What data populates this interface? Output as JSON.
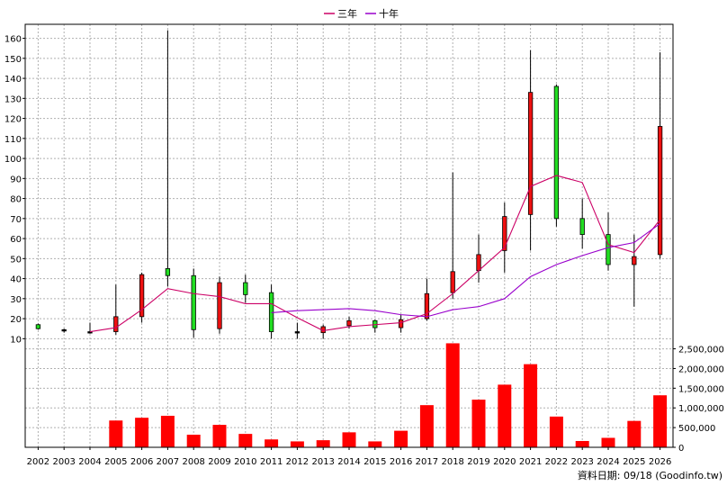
{
  "legend": [
    {
      "name": "三年",
      "color": "#cc0066"
    },
    {
      "name": "十年",
      "color": "#9900cc"
    }
  ],
  "footer_text": "資料日期: 09/18 (Goodinfo.tw)",
  "chart_data": {
    "type": "candlestick-with-volume",
    "x": [
      "2002",
      "2003",
      "2004",
      "2005",
      "2006",
      "2007",
      "2008",
      "2009",
      "2010",
      "2011",
      "2012",
      "2013",
      "2014",
      "2015",
      "2016",
      "2017",
      "2018",
      "2019",
      "2020",
      "2021",
      "2022",
      "2023",
      "2024",
      "2025",
      "2026"
    ],
    "price_axis": {
      "ylim": [
        7,
        167
      ],
      "ticks": [
        10,
        20,
        30,
        40,
        50,
        60,
        70,
        80,
        90,
        100,
        110,
        120,
        130,
        140,
        150,
        160
      ]
    },
    "volume_axis": {
      "ylim": [
        0,
        2650000
      ],
      "ticks": [
        0,
        500000,
        1000000,
        1500000,
        2000000,
        2500000
      ],
      "tick_labels": [
        "0",
        "500,000",
        "1,000,000",
        "1,500,000",
        "2,000,000",
        "2,500,000"
      ]
    },
    "candles": [
      {
        "year": "2002",
        "open": 15.0,
        "close": 17.0,
        "high": 17.5,
        "low": 14.5,
        "color": "green"
      },
      {
        "year": "2003",
        "open": 14.5,
        "close": 14.0,
        "high": 15.0,
        "low": 13.0,
        "color": "black"
      },
      {
        "year": "2004",
        "open": 13.5,
        "close": 13.5,
        "high": 18.0,
        "low": 12.5,
        "color": "black"
      },
      {
        "year": "2005",
        "open": 13.5,
        "close": 21.0,
        "high": 37.0,
        "low": 12.0,
        "color": "red"
      },
      {
        "year": "2006",
        "open": 21.0,
        "close": 42.0,
        "high": 43.0,
        "low": 18.0,
        "color": "red"
      },
      {
        "year": "2007",
        "open": 45.0,
        "close": 41.5,
        "high": 164.0,
        "low": 36.0,
        "color": "green"
      },
      {
        "year": "2008",
        "open": 41.5,
        "close": 14.5,
        "high": 45.0,
        "low": 10.5,
        "color": "green"
      },
      {
        "year": "2009",
        "open": 15.0,
        "close": 38.0,
        "high": 41.0,
        "low": 12.5,
        "color": "red"
      },
      {
        "year": "2010",
        "open": 38.0,
        "close": 32.0,
        "high": 42.0,
        "low": 28.0,
        "color": "green"
      },
      {
        "year": "2011",
        "open": 33.0,
        "close": 13.5,
        "high": 37.0,
        "low": 10.0,
        "color": "green"
      },
      {
        "year": "2012",
        "open": 13.5,
        "close": 13.5,
        "high": 18.0,
        "low": 10.0,
        "color": "black"
      },
      {
        "year": "2013",
        "open": 13.0,
        "close": 16.0,
        "high": 17.0,
        "low": 10.0,
        "color": "red"
      },
      {
        "year": "2014",
        "open": 16.5,
        "close": 19.0,
        "high": 21.0,
        "low": 15.0,
        "color": "red"
      },
      {
        "year": "2015",
        "open": 19.0,
        "close": 15.5,
        "high": 19.5,
        "low": 13.0,
        "color": "green"
      },
      {
        "year": "2016",
        "open": 15.5,
        "close": 19.5,
        "high": 22.0,
        "low": 13.0,
        "color": "red"
      },
      {
        "year": "2017",
        "open": 20.0,
        "close": 32.5,
        "high": 40.0,
        "low": 19.0,
        "color": "red"
      },
      {
        "year": "2018",
        "open": 33.0,
        "close": 43.5,
        "high": 93.0,
        "low": 30.0,
        "color": "red"
      },
      {
        "year": "2019",
        "open": 44.0,
        "close": 52.0,
        "high": 62.0,
        "low": 38.0,
        "color": "red"
      },
      {
        "year": "2020",
        "open": 54.0,
        "close": 71.0,
        "high": 78.0,
        "low": 43.0,
        "color": "red"
      },
      {
        "year": "2021",
        "open": 72.0,
        "close": 133.0,
        "high": 154.0,
        "low": 54.0,
        "color": "red"
      },
      {
        "year": "2022",
        "open": 136.0,
        "close": 70.0,
        "high": 137.0,
        "low": 66.0,
        "color": "green"
      },
      {
        "year": "2023",
        "open": 70.0,
        "close": 62.0,
        "high": 80.0,
        "low": 55.0,
        "color": "green"
      },
      {
        "year": "2024",
        "open": 62.0,
        "close": 47.0,
        "high": 73.0,
        "low": 44.0,
        "color": "green"
      },
      {
        "year": "2025",
        "open": 47.0,
        "close": 51.0,
        "high": 62.0,
        "low": 26.0,
        "color": "red"
      },
      {
        "year": "2026",
        "open": 52.0,
        "close": 116.0,
        "high": 153.0,
        "low": 50.0,
        "color": "red"
      }
    ],
    "series": [
      {
        "name": "三年",
        "color": "#cc0066",
        "x": [
          "2004",
          "2005",
          "2006",
          "2007",
          "2008",
          "2009",
          "2010",
          "2011",
          "2012",
          "2013",
          "2014",
          "2015",
          "2016",
          "2017",
          "2018",
          "2019",
          "2020",
          "2021",
          "2022",
          "2023",
          "2024",
          "2025",
          "2026"
        ],
        "values": [
          13.5,
          15.5,
          24.5,
          35.0,
          32.5,
          31.0,
          27.5,
          27.5,
          20.5,
          14.0,
          16.0,
          17.0,
          18.0,
          22.5,
          32.5,
          44.0,
          55.5,
          86.0,
          91.5,
          88.0,
          57.0,
          53.0,
          69.5
        ]
      },
      {
        "name": "十年",
        "color": "#9900cc",
        "x": [
          "2011",
          "2012",
          "2013",
          "2014",
          "2015",
          "2016",
          "2017",
          "2018",
          "2019",
          "2020",
          "2021",
          "2022",
          "2023",
          "2024",
          "2025",
          "2026"
        ],
        "values": [
          23.0,
          24.0,
          24.5,
          25.0,
          24.0,
          22.0,
          21.0,
          24.5,
          26.0,
          30.0,
          41.0,
          47.0,
          51.5,
          55.5,
          58.0,
          67.5
        ]
      }
    ],
    "volume": [
      0,
      8000,
      9000,
      680000,
      750000,
      800000,
      320000,
      570000,
      340000,
      200000,
      150000,
      180000,
      380000,
      150000,
      420000,
      1070000,
      2640000,
      1210000,
      1590000,
      2110000,
      780000,
      160000,
      240000,
      670000,
      1320000
    ],
    "grid": true
  }
}
